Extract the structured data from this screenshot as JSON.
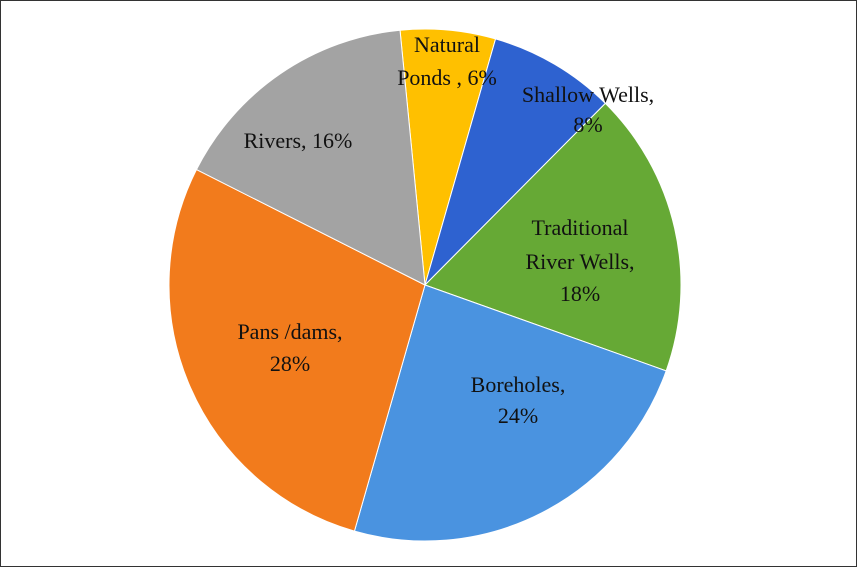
{
  "chart_data": {
    "type": "pie",
    "labels": [
      [
        "Natural",
        "Ponds , 6%"
      ],
      [
        "Shallow Wells,",
        "8%"
      ],
      [
        "Traditional",
        "River Wells,",
        "18%"
      ],
      [
        "Boreholes,",
        "24%"
      ],
      [
        "Pans /dams,",
        "28%"
      ],
      [
        "Rivers, 16%"
      ]
    ],
    "values": [
      6,
      8,
      18,
      24,
      28,
      16
    ],
    "colors": [
      "#ffc000",
      "#2e62d0",
      "#66a935",
      "#4a93e0",
      "#f27b1c",
      "#a3a3a3"
    ]
  }
}
